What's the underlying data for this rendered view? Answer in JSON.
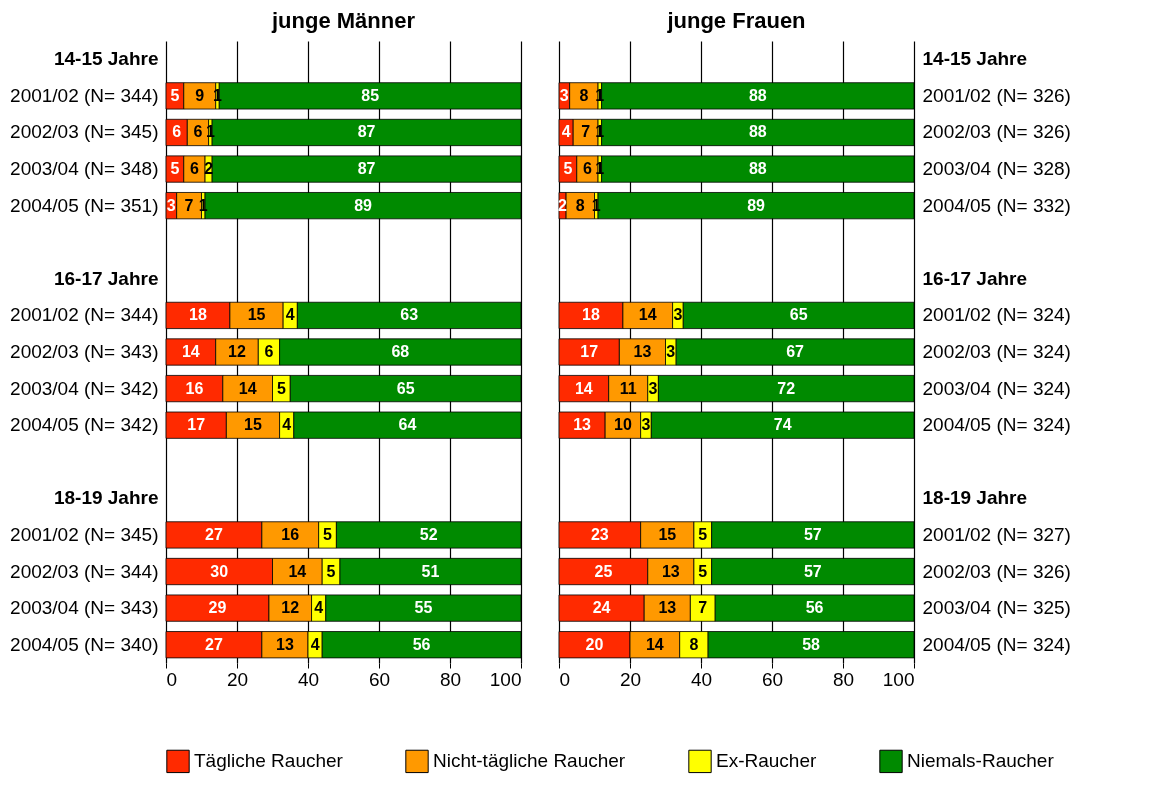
{
  "chart_data": [
    {
      "type": "bar",
      "orientation": "horizontal",
      "stacked": true,
      "title": "junge Männer",
      "categories": [
        "14-15 Jahre",
        "2001/02 (N=  344)",
        "2002/03 (N=  345)",
        "2003/04 (N=  348)",
        "2004/05 (N=  351)",
        null,
        "16-17 Jahre",
        "2001/02 (N=  344)",
        "2002/03 (N=  343)",
        "2003/04 (N=  342)",
        "2004/05 (N=  342)",
        null,
        "18-19 Jahre",
        "2001/02 (N=  345)",
        "2002/03 (N=  344)",
        "2003/04 (N=  343)",
        "2004/05 (N=  340)"
      ],
      "series": [
        {
          "name": "Tägliche Raucher",
          "color": "#ff2a00",
          "values": [
            null,
            5,
            6,
            5,
            3,
            null,
            null,
            18,
            14,
            16,
            17,
            null,
            null,
            27,
            30,
            29,
            27
          ]
        },
        {
          "name": "Nicht-tägliche Raucher",
          "color": "#ff9900",
          "values": [
            null,
            9,
            6,
            6,
            7,
            null,
            null,
            15,
            12,
            14,
            15,
            null,
            null,
            16,
            14,
            12,
            13
          ]
        },
        {
          "name": "Ex-Raucher",
          "color": "#ffff00",
          "values": [
            null,
            1,
            1,
            2,
            1,
            null,
            null,
            4,
            6,
            5,
            4,
            null,
            null,
            5,
            5,
            4,
            4
          ]
        },
        {
          "name": "Niemals-Raucher",
          "color": "#008a00",
          "values": [
            null,
            85,
            87,
            87,
            89,
            null,
            null,
            63,
            68,
            65,
            64,
            null,
            null,
            52,
            51,
            55,
            56
          ]
        }
      ],
      "xlim": [
        0,
        100
      ],
      "xticks": [
        0,
        20,
        40,
        60,
        80,
        100
      ],
      "grid": "x",
      "data_labels": true,
      "legend": "bottom"
    },
    {
      "type": "bar",
      "orientation": "horizontal",
      "stacked": true,
      "title": "junge Frauen",
      "categories": [
        "14-15 Jahre",
        "2001/02 (N=  326)",
        "2002/03 (N=  326)",
        "2003/04 (N=  328)",
        "2004/05 (N=  332)",
        null,
        "16-17 Jahre",
        "2001/02 (N=  324)",
        "2002/03 (N=  324)",
        "2003/04 (N=  324)",
        "2004/05 (N=  324)",
        null,
        "18-19 Jahre",
        "2001/02 (N=  327)",
        "2002/03 (N=  326)",
        "2003/04 (N=  325)",
        "2004/05 (N=  324)"
      ],
      "series": [
        {
          "name": "Tägliche Raucher",
          "color": "#ff2a00",
          "values": [
            null,
            3,
            4,
            5,
            2,
            null,
            null,
            18,
            17,
            14,
            13,
            null,
            null,
            23,
            25,
            24,
            20
          ]
        },
        {
          "name": "Nicht-tägliche Raucher",
          "color": "#ff9900",
          "values": [
            null,
            8,
            7,
            6,
            8,
            null,
            null,
            14,
            13,
            11,
            10,
            null,
            null,
            15,
            13,
            13,
            14
          ]
        },
        {
          "name": "Ex-Raucher",
          "color": "#ffff00",
          "values": [
            null,
            1,
            1,
            1,
            1,
            null,
            null,
            3,
            3,
            3,
            3,
            null,
            null,
            5,
            5,
            7,
            8
          ]
        },
        {
          "name": "Niemals-Raucher",
          "color": "#008a00",
          "values": [
            null,
            88,
            88,
            88,
            89,
            null,
            null,
            65,
            67,
            72,
            74,
            null,
            null,
            57,
            57,
            56,
            58
          ]
        }
      ],
      "xlim": [
        0,
        100
      ],
      "xticks": [
        0,
        20,
        40,
        60,
        80,
        100
      ],
      "grid": "x",
      "data_labels": true,
      "legend": "bottom"
    }
  ]
}
